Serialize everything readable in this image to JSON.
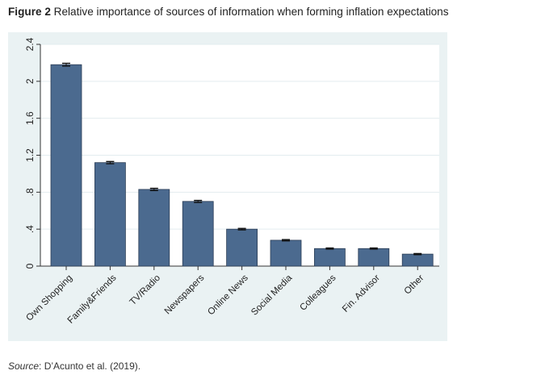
{
  "figure": {
    "label": "Figure 2",
    "title": "Relative importance of sources of information when forming inflation expectations"
  },
  "source": {
    "label": "Source",
    "text": ": D’Acunto et al. (2019)."
  },
  "colors": {
    "outer_bg": "#eaf2f3",
    "plot_bg": "#ffffff",
    "bar": "#4b6a8f",
    "bar_edge": "#2b3d55",
    "grid": "#e3ecef",
    "axis": "#333333"
  },
  "chart_data": {
    "type": "bar",
    "title": "",
    "xlabel": "",
    "ylabel": "",
    "ylim": [
      0,
      2.4
    ],
    "yticks": [
      0,
      0.4,
      0.8,
      1.2,
      1.6,
      2,
      2.4
    ],
    "ytick_labels": [
      "0",
      ".4",
      ".8",
      "1.2",
      "1.6",
      "2",
      "2.4"
    ],
    "grid": true,
    "error_bars": true,
    "categories": [
      "Own Shopping",
      "Family&Friends",
      "TV/Radio",
      "Newspapers",
      "Online News",
      "Social Media",
      "Colleagues",
      "Fin. Advisor",
      "Other"
    ],
    "values": [
      2.18,
      1.12,
      0.83,
      0.7,
      0.4,
      0.28,
      0.19,
      0.19,
      0.13
    ],
    "errors": [
      0.015,
      0.012,
      0.012,
      0.011,
      0.008,
      0.007,
      0.006,
      0.006,
      0.006
    ]
  }
}
